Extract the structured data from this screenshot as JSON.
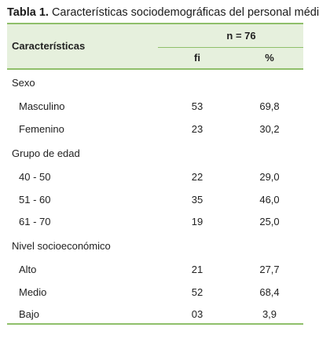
{
  "caption": {
    "label": "Tabla 1.",
    "text": "Características sociodemográficas del personal médico"
  },
  "header": {
    "characteristics": "Características",
    "n": "n = 76",
    "fi": "fi",
    "percent": "%"
  },
  "groups": [
    {
      "title": "Sexo",
      "rows": [
        {
          "label": "Masculino",
          "fi": "53",
          "pct": "69,8"
        },
        {
          "label": "Femenino",
          "fi": "23",
          "pct": "30,2"
        }
      ]
    },
    {
      "title": "Grupo de edad",
      "rows": [
        {
          "label": "40 - 50",
          "fi": "22",
          "pct": "29,0"
        },
        {
          "label": "51 - 60",
          "fi": "35",
          "pct": "46,0"
        },
        {
          "label": "61 - 70",
          "fi": "19",
          "pct": "25,0"
        }
      ]
    },
    {
      "title": "Nivel socioeconómico",
      "rows": [
        {
          "label": "Alto",
          "fi": "21",
          "pct": "27,7"
        },
        {
          "label": "Medio",
          "fi": "52",
          "pct": "68,4"
        },
        {
          "label": "Bajo",
          "fi": "03",
          "pct": "3,9"
        }
      ]
    }
  ],
  "colors": {
    "header_bg": "#e6f0dd",
    "rule": "#8fbf6a"
  }
}
